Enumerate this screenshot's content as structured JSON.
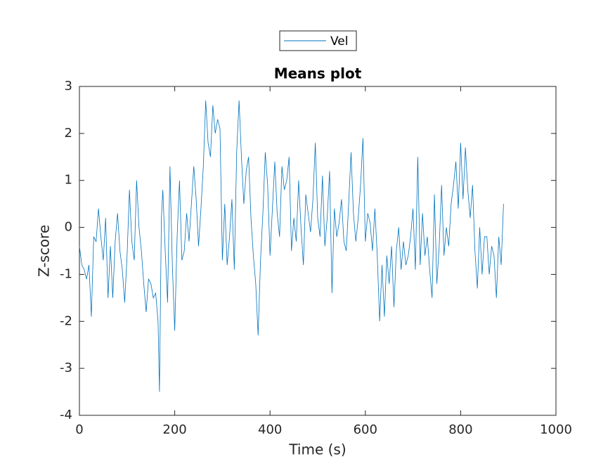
{
  "chart_data": {
    "type": "line",
    "title": "Means plot",
    "xlabel": "Time (s)",
    "ylabel": "Z-score",
    "xlim": [
      0,
      1000
    ],
    "xticks": [
      0,
      200,
      400,
      600,
      800,
      1000
    ],
    "ylim": [
      -4,
      3
    ],
    "yticks": [
      -4,
      -3,
      -2,
      -1,
      0,
      1,
      2,
      3
    ],
    "legend": "top",
    "x": [
      0,
      5,
      10,
      15,
      20,
      25,
      30,
      35,
      40,
      45,
      50,
      55,
      60,
      65,
      70,
      75,
      80,
      85,
      90,
      95,
      100,
      105,
      110,
      115,
      120,
      125,
      130,
      135,
      140,
      145,
      150,
      155,
      160,
      165,
      168,
      172,
      175,
      180,
      185,
      190,
      195,
      200,
      205,
      210,
      215,
      220,
      225,
      230,
      235,
      240,
      245,
      250,
      255,
      260,
      265,
      270,
      275,
      280,
      285,
      290,
      295,
      300,
      305,
      310,
      315,
      320,
      325,
      330,
      335,
      340,
      345,
      350,
      355,
      360,
      365,
      370,
      375,
      380,
      385,
      390,
      395,
      400,
      405,
      410,
      415,
      420,
      425,
      430,
      435,
      440,
      445,
      450,
      455,
      460,
      465,
      470,
      475,
      480,
      485,
      490,
      495,
      500,
      505,
      510,
      515,
      520,
      525,
      530,
      535,
      540,
      545,
      550,
      555,
      560,
      565,
      570,
      575,
      580,
      585,
      590,
      595,
      600,
      605,
      610,
      615,
      620,
      625,
      630,
      635,
      640,
      645,
      650,
      655,
      660,
      665,
      670,
      675,
      680,
      685,
      690,
      695,
      700,
      705,
      710,
      715,
      720,
      725,
      730,
      735,
      740,
      745,
      750,
      755,
      760,
      765,
      770,
      775,
      780,
      785,
      790,
      795,
      800,
      805,
      810,
      815,
      820,
      825,
      830,
      835,
      840,
      845,
      850,
      855,
      860,
      865,
      870,
      875,
      880,
      885,
      890
    ],
    "series": [
      {
        "name": "Vel",
        "color": "#0072BD",
        "values": [
          -0.4,
          -0.8,
          -0.9,
          -1.1,
          -0.8,
          -1.9,
          -0.2,
          -0.3,
          0.4,
          -0.2,
          -0.7,
          0.2,
          -1.5,
          -0.4,
          -1.5,
          -0.3,
          0.3,
          -0.5,
          -0.9,
          -1.6,
          -0.6,
          0.8,
          -0.3,
          -0.7,
          1.0,
          0,
          -0.5,
          -1.2,
          -1.8,
          -1.1,
          -1.2,
          -1.5,
          -1.4,
          -2.0,
          -3.5,
          0.2,
          0.8,
          -0.5,
          -1.6,
          1.3,
          -0.8,
          -2.2,
          -0.2,
          1.0,
          -0.7,
          -0.5,
          0.3,
          -0.3,
          0.5,
          1.3,
          0.6,
          -0.4,
          0.4,
          1.3,
          2.7,
          1.8,
          1.5,
          2.6,
          2.0,
          2.3,
          2.1,
          -0.7,
          0.5,
          -0.8,
          -0.2,
          0.6,
          -0.9,
          1.6,
          2.7,
          1.5,
          0.5,
          1.2,
          1.5,
          0.2,
          -0.6,
          -1.2,
          -2.3,
          -0.7,
          0.3,
          1.6,
          0.9,
          -0.6,
          0.4,
          1.4,
          0.3,
          -0.2,
          1.3,
          0.8,
          1.0,
          1.5,
          -0.5,
          0.2,
          -0.3,
          1.0,
          0,
          -0.8,
          0.7,
          0.3,
          -0.1,
          0.6,
          1.8,
          0.2,
          -0.2,
          1.1,
          -0.4,
          0.2,
          1.2,
          -1.4,
          0.4,
          -0.2,
          0.1,
          0.6,
          -0.3,
          -0.5,
          0.5,
          1.6,
          0.3,
          -0.3,
          0.2,
          0.9,
          1.9,
          -0.3,
          0.3,
          0.1,
          -0.5,
          0.4,
          -0.6,
          -2.0,
          -0.8,
          -1.9,
          -0.6,
          -1.2,
          -0.4,
          -1.7,
          -0.5,
          0,
          -0.9,
          -0.3,
          -0.8,
          -0.6,
          -0.2,
          0.4,
          -0.9,
          1.5,
          -0.8,
          0.3,
          -0.6,
          -0.2,
          -0.9,
          -1.5,
          0.7,
          -1.2,
          -0.4,
          0.9,
          -0.6,
          0,
          -0.4,
          0.5,
          0.9,
          1.4,
          0.4,
          1.8,
          0.6,
          1.7,
          0.8,
          0.2,
          0.9,
          -0.5,
          -1.3,
          0,
          -1.0,
          -0.2,
          -0.2,
          -1.0,
          -0.4,
          -0.6,
          -1.5,
          -0.2,
          -0.8,
          0.5
        ]
      }
    ]
  }
}
